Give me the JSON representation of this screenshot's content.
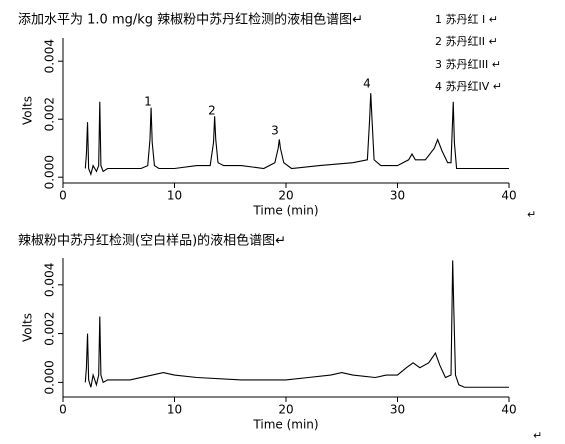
{
  "chart_data": [
    {
      "type": "line",
      "title": "添加水平为 1.0 mg/kg 辣椒粉中苏丹红检测的液相色谱图↵",
      "legend": [
        "1 苏丹红 I ↵",
        "2 苏丹红II ↵",
        "3 苏丹红III ↵",
        "4 苏丹红IV ↵"
      ],
      "annotations": [
        "1",
        "2",
        "3",
        "4"
      ],
      "x_label": "Time (min)",
      "y_label": "Volts",
      "color": "#000000",
      "x": [
        2.0,
        2.1,
        2.2,
        2.3,
        2.5,
        2.7,
        3.0,
        3.2,
        3.3,
        3.4,
        3.6,
        4.0,
        5,
        6,
        7,
        7.6,
        7.8,
        7.9,
        8.0,
        8.2,
        8.6,
        10,
        12,
        13.2,
        13.5,
        13.6,
        13.7,
        13.9,
        14.4,
        16,
        18,
        19.0,
        19.3,
        19.4,
        19.5,
        19.8,
        20.5,
        23,
        26,
        27.3,
        27.5,
        27.6,
        27.7,
        27.9,
        28.5,
        30,
        31.0,
        31.3,
        31.6,
        32.5,
        33.3,
        33.6,
        34.0,
        34.5,
        34.8,
        35.0,
        35.1,
        35.3,
        36,
        40
      ],
      "values": [
        0.0003,
        0.0008,
        0.0019,
        0.0003,
        0.0001,
        0.0004,
        0.0002,
        0.0004,
        0.0026,
        0.0004,
        0.0002,
        0.0003,
        0.0003,
        0.0003,
        0.0003,
        0.0004,
        0.0013,
        0.0024,
        0.0012,
        0.0004,
        0.0003,
        0.0003,
        0.0004,
        0.0004,
        0.0012,
        0.0021,
        0.0013,
        0.0005,
        0.0004,
        0.0004,
        0.0003,
        0.0005,
        0.001,
        0.0013,
        0.001,
        0.0005,
        0.0003,
        0.0004,
        0.0005,
        0.0006,
        0.002,
        0.0029,
        0.0021,
        0.0006,
        0.0004,
        0.0004,
        0.0006,
        0.0008,
        0.0006,
        0.0006,
        0.001,
        0.0013,
        0.0009,
        0.0005,
        0.0005,
        0.0026,
        0.0012,
        0.0003,
        0.0003,
        0.0003
      ],
      "xlim": [
        0,
        40
      ],
      "xticks": [
        0,
        10,
        20,
        30,
        40
      ],
      "ylim": [
        -0.0002,
        0.0048
      ],
      "yticks": [
        {
          "value": 0,
          "label": "0.000"
        },
        {
          "value": 0.002,
          "label": "0.002"
        },
        {
          "value": 0.004,
          "label": "0.004"
        }
      ],
      "trailing_mark": "↵"
    },
    {
      "type": "line",
      "title": "辣椒粉中苏丹红检测(空白样品)的液相色谱图↵",
      "x_label": "Time (min)",
      "y_label": "Volts",
      "color": "#000000",
      "x": [
        2.0,
        2.1,
        2.2,
        2.3,
        2.5,
        2.7,
        3.0,
        3.2,
        3.3,
        3.4,
        3.6,
        4.0,
        6,
        8,
        9,
        10,
        12,
        16,
        20,
        22,
        24,
        25,
        26,
        28,
        29,
        30,
        30.8,
        31.4,
        32,
        32.8,
        33.4,
        33.8,
        34.3,
        34.8,
        34.95,
        35.05,
        35.2,
        35.5,
        36,
        40
      ],
      "values": [
        0,
        0.0006,
        0.002,
        0.0001,
        -0.0002,
        0.0003,
        -0.0001,
        0.0003,
        0.0027,
        0.0003,
        0,
        0.0001,
        0.0001,
        0.0003,
        0.0004,
        0.0003,
        0.0002,
        0.0001,
        0.0001,
        0.0002,
        0.0003,
        0.0004,
        0.0003,
        0.0002,
        0.0003,
        0.0003,
        0.0006,
        0.0008,
        0.0006,
        0.0008,
        0.0012,
        0.0007,
        0.0002,
        0.0003,
        0.005,
        0.003,
        0.0003,
        -0.0001,
        -0.0002,
        -0.0002
      ],
      "xlim": [
        0,
        40
      ],
      "xticks": [
        0,
        10,
        20,
        30,
        40
      ],
      "ylim": [
        -0.0006,
        0.0051
      ],
      "yticks": [
        {
          "value": 0,
          "label": "0.000"
        },
        {
          "value": 0.002,
          "label": "0.002"
        },
        {
          "value": 0.004,
          "label": "0.004"
        }
      ],
      "trailing_mark": "↵"
    }
  ]
}
